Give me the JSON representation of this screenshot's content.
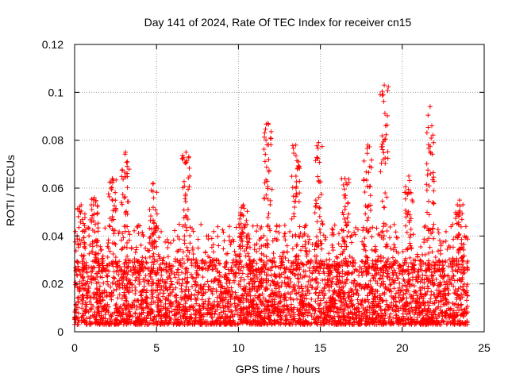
{
  "chart_data": {
    "type": "scatter",
    "title": "Day 141 of 2024, Rate Of TEC Index for receiver cn15",
    "xlabel": "GPS time / hours",
    "ylabel": "ROTI / TECUs",
    "xlim": [
      0,
      25
    ],
    "ylim": [
      0,
      0.12
    ],
    "x_ticks": [
      0,
      5,
      10,
      15,
      20,
      25
    ],
    "y_ticks": [
      0,
      0.02,
      0.04,
      0.06,
      0.08,
      0.1,
      0.12
    ],
    "x_tick_labels": [
      "0",
      "5",
      "10",
      "15",
      "20",
      "25"
    ],
    "y_tick_labels": [
      "0",
      "0.02",
      "0.04",
      "0.06",
      "0.08",
      "0.1",
      "0.12"
    ],
    "grid": true,
    "marker": "+",
    "color": "#ff0000",
    "series": [
      {
        "name": "ROTI",
        "x_range_hours": [
          0,
          24
        ],
        "typical_range": [
          0.003,
          0.03
        ],
        "peaks": [
          {
            "x": 0.4,
            "y": 0.053
          },
          {
            "x": 1.2,
            "y": 0.056
          },
          {
            "x": 2.3,
            "y": 0.064
          },
          {
            "x": 3.1,
            "y": 0.075
          },
          {
            "x": 4.8,
            "y": 0.062
          },
          {
            "x": 6.8,
            "y": 0.075
          },
          {
            "x": 10.3,
            "y": 0.053
          },
          {
            "x": 11.8,
            "y": 0.087
          },
          {
            "x": 13.5,
            "y": 0.078
          },
          {
            "x": 14.9,
            "y": 0.079
          },
          {
            "x": 16.5,
            "y": 0.064
          },
          {
            "x": 17.9,
            "y": 0.078
          },
          {
            "x": 18.9,
            "y": 0.103
          },
          {
            "x": 20.4,
            "y": 0.065
          },
          {
            "x": 21.7,
            "y": 0.094
          },
          {
            "x": 23.5,
            "y": 0.055
          }
        ]
      }
    ]
  }
}
